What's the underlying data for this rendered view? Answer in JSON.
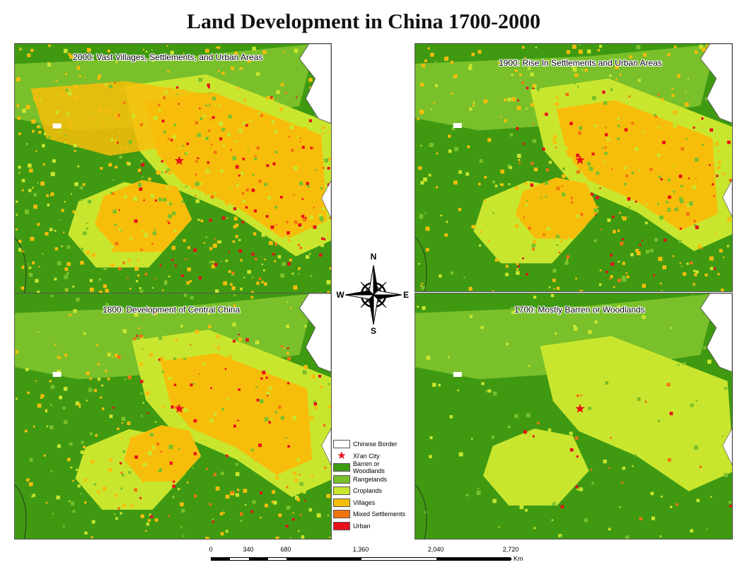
{
  "title": "Land Development in China 1700-2000",
  "panels": [
    {
      "id": "p2000",
      "year": "2000",
      "label": "2000: Vast Villages, Settlements, and Urban Areas",
      "develop": 0.72
    },
    {
      "id": "p1900",
      "year": "1900",
      "label": "1900: Rise In Settlements and Urban Areas",
      "develop": 0.5
    },
    {
      "id": "p1800",
      "year": "1800",
      "label": "1800: Development of Central China",
      "develop": 0.4
    },
    {
      "id": "p1700",
      "year": "1700",
      "label": "1700: Mostly Barren or Woodlands",
      "develop": 0.08
    }
  ],
  "compass": {
    "n": "N",
    "s": "S",
    "e": "E",
    "w": "W"
  },
  "legend": [
    {
      "label": "Chinese Border",
      "color": "#ffffff"
    },
    {
      "label": "Xi'an City",
      "color": "#e8101a",
      "symbol": "★"
    },
    {
      "label": "Barren or Woodlands",
      "color": "#3f9a12"
    },
    {
      "label": "Rangelands",
      "color": "#79c02a"
    },
    {
      "label": "Croplands",
      "color": "#c9e62e"
    },
    {
      "label": "Villages",
      "color": "#f7bd0b"
    },
    {
      "label": "Mixed Settlements",
      "color": "#f2740f"
    },
    {
      "label": "Urban",
      "color": "#e8101a"
    }
  ],
  "scale": {
    "ticks": [
      "0",
      "340",
      "680",
      "1,360",
      "2,040",
      "2,720"
    ],
    "unit": "Km"
  },
  "colors": {
    "woodland": "#3f9a12",
    "rangeland": "#79c02a",
    "cropland": "#c9e62e",
    "village": "#f7bd0b",
    "mixed": "#f2740f",
    "urban": "#e8101a",
    "border": "#ffffff"
  }
}
